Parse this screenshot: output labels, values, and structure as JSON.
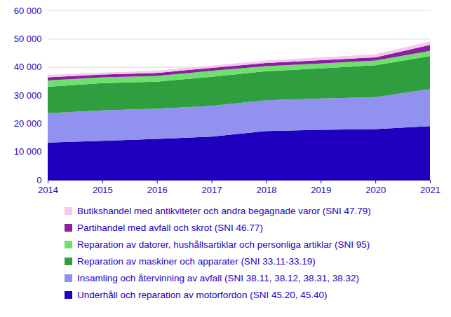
{
  "chart_data": {
    "type": "area",
    "stacked": true,
    "grid": true,
    "legend": "bottom",
    "x": [
      2014,
      2015,
      2016,
      2017,
      2018,
      2019,
      2020,
      2021
    ],
    "xlim": [
      2014,
      2021
    ],
    "xticks": [
      2014,
      2015,
      2016,
      2017,
      2018,
      2019,
      2020,
      2021
    ],
    "ylim": [
      0,
      60000
    ],
    "yticks": [
      0,
      {
        "value": 10000,
        "label": "10 000"
      },
      {
        "value": 20000,
        "label": "20 000"
      },
      {
        "value": 30000,
        "label": "30 000"
      },
      {
        "value": 40000,
        "label": "40 000"
      },
      {
        "value": 50000,
        "label": "50 000"
      },
      {
        "value": 60000,
        "label": "60 000"
      }
    ],
    "series": [
      {
        "name": "Underhåll och reparation av motorfordon (SNI 45.20, 45.40)",
        "color": "#1e00be",
        "values": [
          13200,
          13800,
          14500,
          15300,
          17300,
          17700,
          18000,
          19000
        ]
      },
      {
        "name": "Insamling och återvinning av avfall (SNI 38.11, 38.12, 38.31, 38.32)",
        "color": "#9191f0",
        "values": [
          10400,
          10800,
          10700,
          10900,
          10900,
          11100,
          11300,
          13200
        ]
      },
      {
        "name": "Reparation av maskiner och apparater (SNI 33.11-33.19)",
        "color": "#2e9e3e",
        "values": [
          9400,
          9700,
          9600,
          10300,
          10300,
          10700,
          11300,
          11600
        ]
      },
      {
        "name": "Reparation av datorer, hushållsartiklar och personliga artiklar (SNI 95)",
        "color": "#6ee06e",
        "values": [
          2200,
          2000,
          2000,
          2100,
          1800,
          1700,
          1700,
          1900
        ]
      },
      {
        "name": "Partihandel med avfall och skrot (SNI 46.77)",
        "color": "#8c1ea0",
        "values": [
          1100,
          1000,
          1100,
          1100,
          1100,
          1200,
          1100,
          2100
        ]
      },
      {
        "name": "Butikshandel med antikviteter och andra begagnade varor (SNI 47.79)",
        "color": "#f5c8f0",
        "values": [
          900,
          700,
          800,
          800,
          900,
          1000,
          1100,
          1200
        ]
      }
    ]
  }
}
